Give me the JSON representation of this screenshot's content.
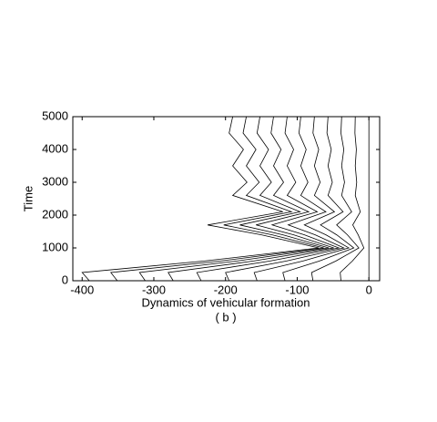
{
  "chart_data": {
    "type": "line",
    "xlabel": "Dynamics of vehicular formation",
    "caption": "( b )",
    "ylabel": "Time",
    "xlim": [
      -413,
      15
    ],
    "xticks": [
      -400,
      -300,
      -200,
      -100,
      0
    ],
    "ylim": [
      0,
      5000
    ],
    "yticks": [
      0,
      1000,
      2000,
      3000,
      4000,
      5000
    ],
    "color": "#000000",
    "y": [
      0,
      250,
      600,
      1000,
      1400,
      1700,
      2100,
      2600,
      3000,
      3500,
      4000,
      4500,
      5000
    ],
    "series": [
      {
        "values": [
          0,
          0,
          0,
          0,
          0,
          0,
          0,
          0,
          0,
          0,
          0,
          0,
          0
        ]
      },
      {
        "values": [
          -39,
          -40,
          -23,
          -7,
          -15,
          -22.5,
          -12,
          -19,
          -17,
          -19,
          -17.5,
          -19.5,
          -19
        ]
      },
      {
        "values": [
          -78,
          -80,
          -46,
          -14,
          -30,
          -45,
          -24,
          -38,
          -34,
          -38,
          -35,
          -39,
          -38
        ]
      },
      {
        "values": [
          -117,
          -120,
          -69,
          -21,
          -45,
          -67.5,
          -36,
          -57,
          -51,
          -57,
          -52.5,
          -58.5,
          -57
        ]
      },
      {
        "values": [
          -156,
          -160,
          -92,
          -28,
          -60,
          -90,
          -48,
          -76,
          -68,
          -76,
          -70,
          -78,
          -76
        ]
      },
      {
        "values": [
          -195,
          -200,
          -115,
          -35,
          -75,
          -112.5,
          -60,
          -95,
          -85,
          -95,
          -87.5,
          -97.5,
          -95
        ]
      },
      {
        "values": [
          -234,
          -240,
          -138,
          -42,
          -90,
          -135,
          -72,
          -114,
          -102,
          -114,
          -105,
          -117,
          -114
        ]
      },
      {
        "values": [
          -273,
          -280,
          -161,
          -49,
          -105,
          -157.5,
          -84,
          -133,
          -119,
          -133,
          -122.5,
          -136.5,
          -133
        ]
      },
      {
        "values": [
          -312,
          -320,
          -184,
          -56,
          -120,
          -180,
          -96,
          -152,
          -136,
          -152,
          -140,
          -156,
          -152
        ]
      },
      {
        "values": [
          -351,
          -360,
          -207,
          -63,
          -135,
          -202.5,
          -108,
          -171,
          -153,
          -171,
          -157.5,
          -175.5,
          -171
        ]
      },
      {
        "values": [
          -390,
          -400,
          -230,
          -70,
          -150,
          -225,
          -120,
          -190,
          -170,
          -190,
          -175,
          -195,
          -190
        ]
      }
    ]
  }
}
